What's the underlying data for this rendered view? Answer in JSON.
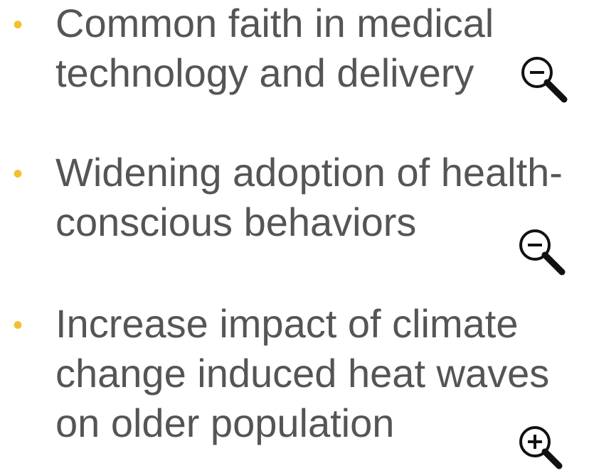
{
  "bullets": [
    {
      "lines": [
        "Common faith in medical",
        "technology and delivery"
      ]
    },
    {
      "lines": [
        "Widening adoption of health-",
        "conscious behaviors"
      ]
    },
    {
      "lines": [
        "Increase impact of climate",
        "change induced heat waves",
        "on older population"
      ]
    }
  ]
}
